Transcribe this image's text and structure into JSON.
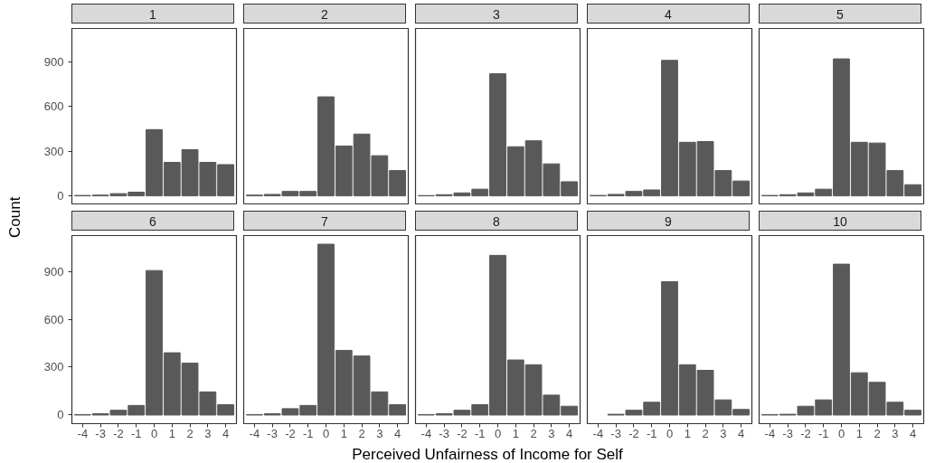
{
  "chart_data": [
    {
      "type": "bar",
      "title": "1",
      "ylabel": "Count",
      "categories": [
        "-4",
        "-3",
        "-2",
        "-1",
        "0",
        "1",
        "2",
        "3",
        "4"
      ],
      "values": [
        3,
        5,
        15,
        25,
        445,
        225,
        310,
        225,
        210
      ],
      "color": "#595959",
      "ylim": [
        -54,
        1124
      ],
      "yticks": [
        0,
        300,
        600,
        900
      ],
      "grid": false,
      "tick_labels": "y"
    },
    {
      "type": "bar",
      "title": "2",
      "categories": [
        "-4",
        "-3",
        "-2",
        "-1",
        "0",
        "1",
        "2",
        "3",
        "4"
      ],
      "values": [
        5,
        10,
        30,
        30,
        665,
        335,
        415,
        270,
        170
      ],
      "color": "#595959",
      "ylim": [
        -54,
        1124
      ],
      "yticks": [
        0,
        300,
        600,
        900
      ],
      "grid": false,
      "tick_labels": false
    },
    {
      "type": "bar",
      "title": "3",
      "categories": [
        "-4",
        "-3",
        "-2",
        "-1",
        "0",
        "1",
        "2",
        "3",
        "4"
      ],
      "values": [
        2,
        8,
        20,
        45,
        820,
        330,
        370,
        215,
        95
      ],
      "color": "#595959",
      "ylim": [
        -54,
        1124
      ],
      "yticks": [
        0,
        300,
        600,
        900
      ],
      "grid": false,
      "tick_labels": false
    },
    {
      "type": "bar",
      "title": "4",
      "categories": [
        "-4",
        "-3",
        "-2",
        "-1",
        "0",
        "1",
        "2",
        "3",
        "4"
      ],
      "values": [
        3,
        10,
        30,
        40,
        910,
        360,
        365,
        170,
        100
      ],
      "color": "#595959",
      "ylim": [
        -54,
        1124
      ],
      "yticks": [
        0,
        300,
        600,
        900
      ],
      "grid": false,
      "tick_labels": false
    },
    {
      "type": "bar",
      "title": "5",
      "categories": [
        "-4",
        "-3",
        "-2",
        "-1",
        "0",
        "1",
        "2",
        "3",
        "4"
      ],
      "values": [
        3,
        8,
        20,
        45,
        920,
        360,
        355,
        170,
        75
      ],
      "color": "#595959",
      "ylim": [
        -54,
        1124
      ],
      "yticks": [
        0,
        300,
        600,
        900
      ],
      "grid": false,
      "tick_labels": false
    },
    {
      "type": "bar",
      "title": "6",
      "categories": [
        "-4",
        "-3",
        "-2",
        "-1",
        "0",
        "1",
        "2",
        "3",
        "4"
      ],
      "values": [
        3,
        8,
        30,
        60,
        905,
        390,
        325,
        145,
        65
      ],
      "color": "#595959",
      "ylim": [
        -54,
        1124
      ],
      "yticks": [
        0,
        300,
        600,
        900
      ],
      "grid": false
    },
    {
      "type": "bar",
      "title": "7",
      "categories": [
        "-4",
        "-3",
        "-2",
        "-1",
        "0",
        "1",
        "2",
        "3",
        "4"
      ],
      "values": [
        3,
        8,
        40,
        60,
        1070,
        405,
        370,
        145,
        65
      ],
      "color": "#595959",
      "ylim": [
        -54,
        1124
      ],
      "yticks": [
        0,
        300,
        600,
        900
      ],
      "grid": false,
      "tick_labels": "x"
    },
    {
      "type": "bar",
      "title": "8",
      "xlabel": "Perceived Unfairness of Income for Self",
      "categories": [
        "-4",
        "-3",
        "-2",
        "-1",
        "0",
        "1",
        "2",
        "3",
        "4"
      ],
      "values": [
        3,
        8,
        30,
        65,
        1000,
        345,
        315,
        125,
        55
      ],
      "color": "#595959",
      "ylim": [
        -54,
        1124
      ],
      "yticks": [
        0,
        300,
        600,
        900
      ],
      "grid": false,
      "tick_labels": "x"
    },
    {
      "type": "bar",
      "title": "9",
      "categories": [
        "-4",
        "-3",
        "-2",
        "-1",
        "0",
        "1",
        "2",
        "3",
        "4"
      ],
      "values": [
        null,
        5,
        30,
        80,
        835,
        315,
        280,
        95,
        35
      ],
      "color": "#595959",
      "ylim": [
        -54,
        1124
      ],
      "yticks": [
        0,
        300,
        600,
        900
      ],
      "grid": false,
      "tick_labels": "x"
    },
    {
      "type": "bar",
      "title": "10",
      "categories": [
        "-4",
        "-3",
        "-2",
        "-1",
        "0",
        "1",
        "2",
        "3",
        "4"
      ],
      "values": [
        3,
        5,
        55,
        95,
        945,
        265,
        205,
        80,
        30
      ],
      "color": "#595959",
      "ylim": [
        -54,
        1124
      ],
      "yticks": [
        0,
        300,
        600,
        900
      ],
      "grid": false,
      "tick_labels": "x"
    }
  ]
}
